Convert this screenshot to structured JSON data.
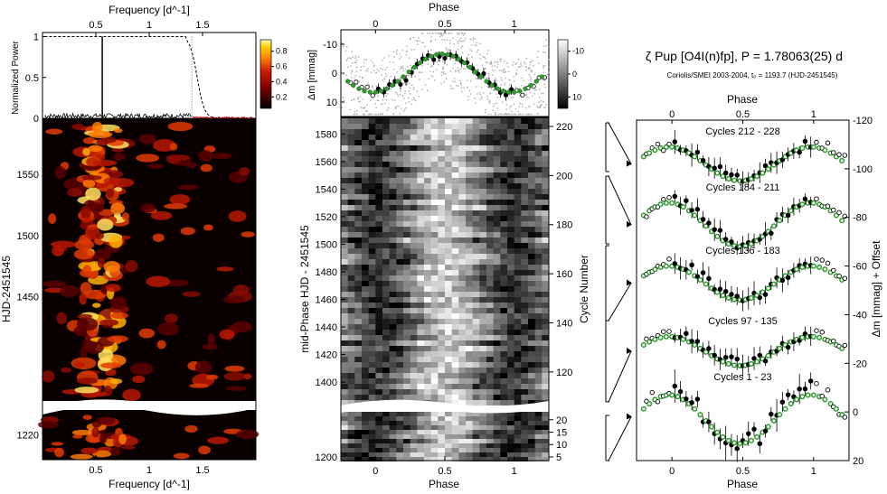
{
  "chart_data": [
    {
      "type": "heatmap",
      "panel": "left",
      "title": "",
      "top_plot": {
        "type": "line",
        "xlabel": "Frequency [d^-1]",
        "ylabel": "Normalized Power",
        "xlim": [
          0,
          2.0
        ],
        "ylim": [
          0,
          1.05
        ],
        "x_ticks": [
          "0.5",
          "1",
          "1.5"
        ],
        "x_tick_values": [
          0.5,
          1.0,
          1.5
        ],
        "y_ticks": [
          "0",
          "0.5",
          "1"
        ],
        "y_tick_values": [
          0,
          0.5,
          1.0
        ],
        "peak_frequency": 0.56,
        "peak_power": 1.0,
        "filter_cutoff": 1.4,
        "colorbar_ticks": [
          "0.8",
          "0.6",
          "0.4",
          "0.2"
        ],
        "colorbar_values": [
          0.8,
          0.6,
          0.4,
          0.2
        ],
        "colorbar_range": [
          0.05,
          0.95
        ]
      },
      "xlabel": "Frequency [d^-1]",
      "ylabel": "HJD-2451545",
      "xlim": [
        0,
        2.0
      ],
      "x_ticks": [
        "0.5",
        "1",
        "1.5"
      ],
      "x_tick_values": [
        0.5,
        1.0,
        1.5
      ],
      "upper_ylim": [
        1365,
        1595
      ],
      "upper_y_ticks": [
        "1550",
        "1500",
        "1450"
      ],
      "upper_y_tick_values": [
        1550,
        1500,
        1450
      ],
      "lower_ylim": [
        1195,
        1245
      ],
      "lower_y_ticks": [
        "1220"
      ],
      "lower_y_tick_values": [
        1220
      ]
    },
    {
      "type": "heatmap",
      "panel": "middle",
      "top_plot": {
        "type": "scatter",
        "xlabel": "Phase",
        "ylabel": "Δm [mmag]",
        "xlim": [
          -0.25,
          1.25
        ],
        "ylim": [
          15,
          -15
        ],
        "x_ticks": [
          "0",
          "0.5",
          "1"
        ],
        "x_tick_values": [
          0,
          0.5,
          1.0
        ],
        "y_ticks": [
          "-10",
          "0",
          "10"
        ],
        "y_tick_values": [
          -10,
          0,
          10
        ],
        "colorbar_ticks": [
          "-10",
          "0",
          "10"
        ],
        "colorbar_values": [
          -10,
          0,
          10
        ],
        "colorbar_range": [
          -15,
          15
        ]
      },
      "xlabel": "Phase",
      "ylabel": "mid-Phase HJD - 2451545",
      "right_label": "Cycle Number",
      "xlim": [
        -0.25,
        1.25
      ],
      "x_ticks": [
        "0",
        "0.5",
        "1"
      ],
      "x_tick_values": [
        0,
        0.5,
        1.0
      ],
      "upper_ylim": [
        1385,
        1592
      ],
      "upper_y_ticks": [
        "1580",
        "1560",
        "1540",
        "1520",
        "1500",
        "1480",
        "1460",
        "1440",
        "1420",
        "1400"
      ],
      "upper_y_tick_values": [
        1580,
        1560,
        1540,
        1520,
        1500,
        1480,
        1460,
        1440,
        1420,
        1400
      ],
      "upper_cycle_ticks": [
        "220",
        "200",
        "180",
        "160",
        "140",
        "120"
      ],
      "upper_cycle_values": [
        220,
        200,
        180,
        160,
        140,
        120
      ],
      "lower_ylim": [
        1200,
        1235
      ],
      "lower_y_ticks": [
        "1200"
      ],
      "lower_y_tick_values": [
        1200
      ],
      "lower_cycle_ticks": [
        "20",
        "15",
        "10",
        "5"
      ],
      "lower_cycle_values": [
        20,
        15,
        10,
        5
      ]
    },
    {
      "type": "scatter",
      "panel": "right",
      "title": "ζ Pup [O4I(n)fp], P = 1.78063(25) d",
      "subtitle": "Coriolis/SMEI 2003-2004, t₀ = 1193.7 (HJD-2451545)",
      "xlabel": "Phase",
      "ylabel": "Δm [mmag] + Offset",
      "xlim": [
        -0.25,
        1.25
      ],
      "ylim": [
        -120,
        20
      ],
      "x_ticks": [
        "0",
        "0.5",
        "1"
      ],
      "x_tick_values": [
        0,
        0.5,
        1.0
      ],
      "y_ticks": [
        "-120",
        "-100",
        "-80",
        "-60",
        "-40",
        "-20",
        "0",
        "20"
      ],
      "y_tick_values": [
        -120,
        -100,
        -80,
        -60,
        -40,
        -20,
        0,
        20
      ],
      "series": [
        {
          "name": "Cycles 212 - 228",
          "offset": -102,
          "amplitude": 7
        },
        {
          "name": "Cycles 184 - 211",
          "offset": -77,
          "amplitude": 9
        },
        {
          "name": "Cycles 136 - 183",
          "offset": -53,
          "amplitude": 7
        },
        {
          "name": "Cycles 97 - 135",
          "offset": -25,
          "amplitude": 6
        },
        {
          "name": "Cycles 1 - 23",
          "offset": 2,
          "amplitude": 10
        }
      ]
    }
  ]
}
